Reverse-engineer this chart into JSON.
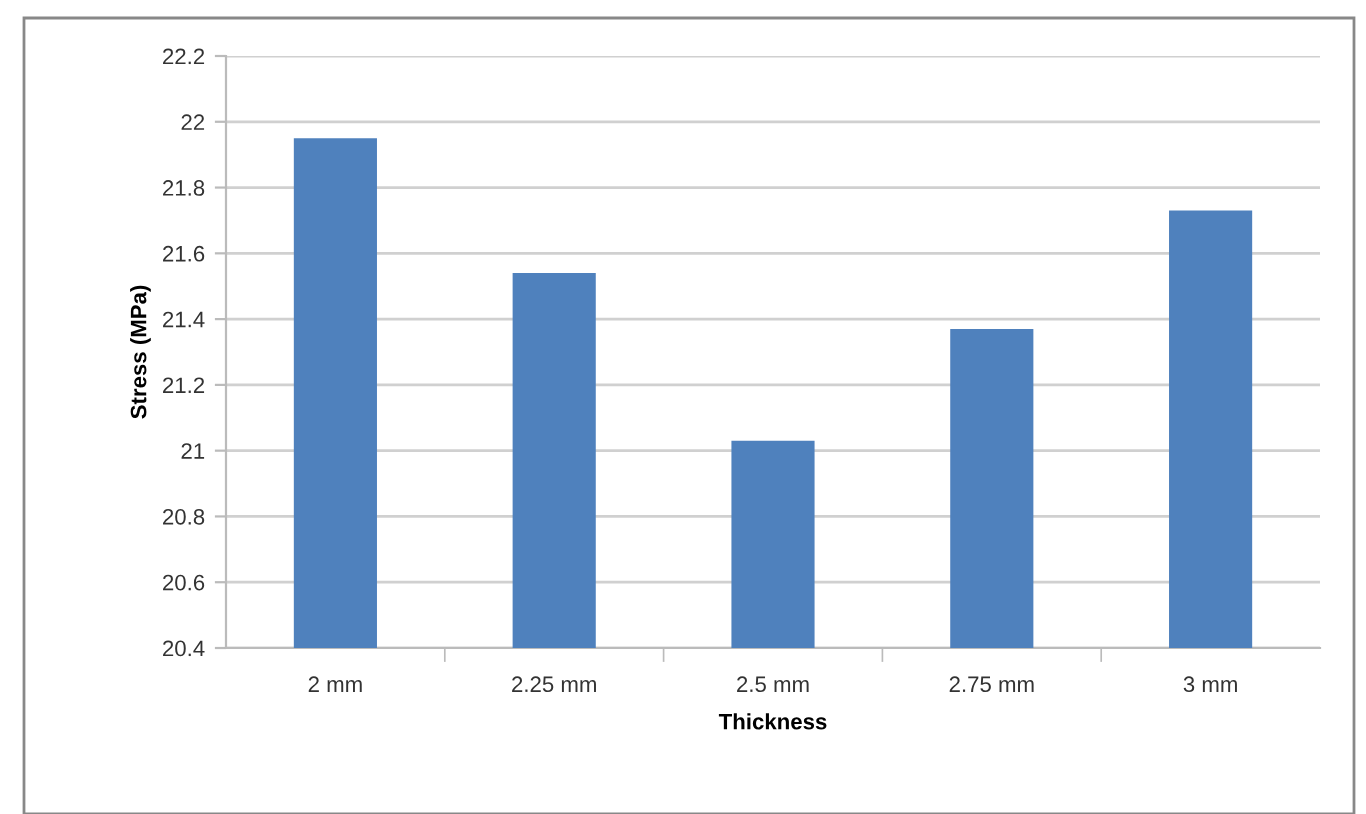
{
  "chart_data": {
    "type": "bar",
    "xlabel": "Thickness",
    "ylabel": "Stress (MPa)",
    "categories": [
      "2 mm",
      "2.25 mm",
      "2.5 mm",
      "2.75 mm",
      "3 mm"
    ],
    "values": [
      21.95,
      21.54,
      21.03,
      21.37,
      21.73
    ],
    "color": "#4f81bd",
    "ylim": [
      20.4,
      22.2
    ],
    "yticks": [
      {
        "value": 20.4,
        "label": "20.4"
      },
      {
        "value": 20.6,
        "label": "20.6"
      },
      {
        "value": 20.8,
        "label": "20.8"
      },
      {
        "value": 21,
        "label": "21"
      },
      {
        "value": 21.2,
        "label": "21.2"
      },
      {
        "value": 21.4,
        "label": "21.4"
      },
      {
        "value": 21.6,
        "label": "21.6"
      },
      {
        "value": 21.8,
        "label": "21.8"
      },
      {
        "value": 22,
        "label": "22"
      },
      {
        "value": 22.2,
        "label": "22.2"
      }
    ],
    "grid": "y",
    "legend": false
  }
}
